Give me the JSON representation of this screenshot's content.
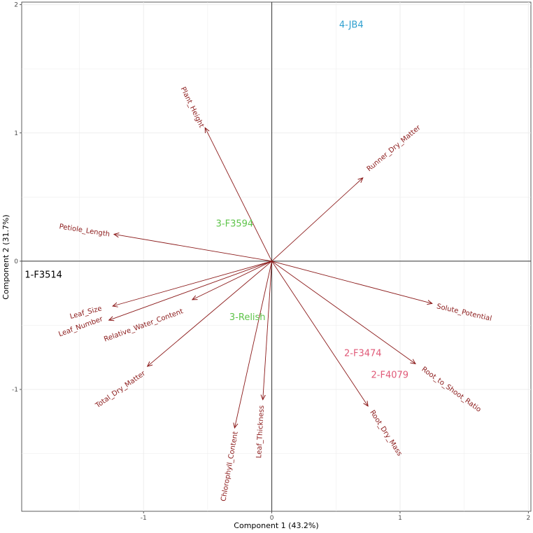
{
  "chart_data": {
    "type": "scatter",
    "subtype": "pca-biplot",
    "xlabel": "Component 1 (43.2%)",
    "ylabel": "Component 2 (31.7%)",
    "xlim": [
      -1.95,
      2.02
    ],
    "ylim": [
      -1.95,
      2.02
    ],
    "xticks": [
      -1,
      0,
      1,
      2
    ],
    "yticks": [
      -1,
      0,
      1,
      2
    ],
    "grid": true,
    "colors": {
      "loadings": "#8b1a1a",
      "axes_lines": "#333333",
      "grid": "#ebebeb"
    },
    "loadings": [
      {
        "name": "Plant_Height",
        "x": -0.52,
        "y": 1.04,
        "label_x": -0.62,
        "label_y": 1.2,
        "angle": 64
      },
      {
        "name": "Runner_Dry_Matter",
        "x": 0.71,
        "y": 0.65,
        "label_x": 0.95,
        "label_y": 0.88,
        "angle": -40
      },
      {
        "name": "Petiole_Length",
        "x": -1.23,
        "y": 0.21,
        "label_x": -1.46,
        "label_y": 0.24,
        "angle": 9
      },
      {
        "name": "Solute_Potential",
        "x": 1.25,
        "y": -0.33,
        "label_x": 1.5,
        "label_y": -0.4,
        "angle": 13
      },
      {
        "name": "Leaf_Size",
        "x": -1.24,
        "y": -0.35,
        "label_x": -1.45,
        "label_y": -0.4,
        "angle": -15
      },
      {
        "name": "Leaf_Number",
        "x": -1.27,
        "y": -0.46,
        "label_x": -1.49,
        "label_y": -0.51,
        "angle": -20
      },
      {
        "name": "Relative_Water_Content",
        "x": -0.62,
        "y": -0.3,
        "label_x": -1.0,
        "label_y": -0.5,
        "angle": -20
      },
      {
        "name": "Total_Dry_Matter",
        "x": -0.97,
        "y": -0.82,
        "label_x": -1.18,
        "label_y": -1.0,
        "angle": -35
      },
      {
        "name": "Chlorophyll_Content",
        "x": -0.29,
        "y": -1.3,
        "label_x": -0.33,
        "label_y": -1.6,
        "angle": -80
      },
      {
        "name": "Leaf_Thickness",
        "x": -0.07,
        "y": -1.08,
        "label_x": -0.09,
        "label_y": -1.33,
        "angle": -87
      },
      {
        "name": "Root_Dry_Mass",
        "x": 0.75,
        "y": -1.13,
        "label_x": 0.89,
        "label_y": -1.34,
        "angle": 57
      },
      {
        "name": "Root_to_Shoot_Ratio",
        "x": 1.12,
        "y": -0.8,
        "label_x": 1.4,
        "label_y": -1.0,
        "angle": 36
      }
    ],
    "samples": [
      {
        "name": "4-JB4",
        "x": 0.62,
        "y": 1.84,
        "color": "#2e9fcf"
      },
      {
        "name": "3-F3594",
        "x": -0.29,
        "y": 0.29,
        "color": "#5ec44a"
      },
      {
        "name": "1-F3514",
        "x": -1.78,
        "y": -0.11,
        "color": "#000000"
      },
      {
        "name": "3-Relish",
        "x": -0.19,
        "y": -0.44,
        "color": "#5ec44a"
      },
      {
        "name": "2-F3474",
        "x": 0.71,
        "y": -0.72,
        "color": "#e05a78"
      },
      {
        "name": "2-F4079",
        "x": 0.92,
        "y": -0.89,
        "color": "#e05a78"
      }
    ]
  }
}
